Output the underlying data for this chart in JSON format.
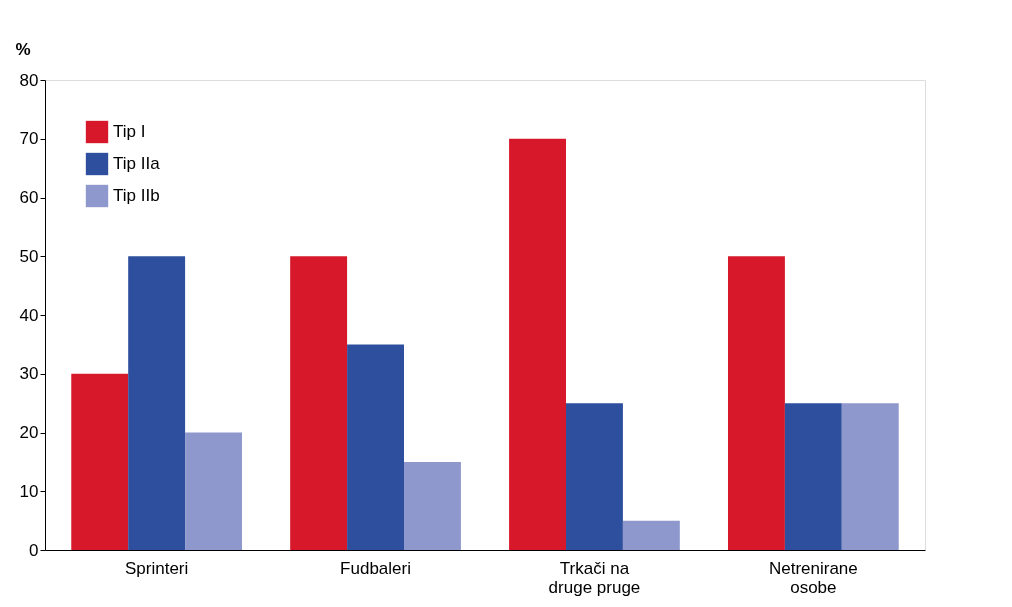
{
  "chart_data": {
    "type": "bar",
    "ylabel": "%",
    "categories": [
      "Sprinteri",
      "Fudbaleri",
      "Trkači na druge pruge",
      "Netrenirane osobe"
    ],
    "series": [
      {
        "name": "Tip I",
        "color": "#d7182a",
        "values": [
          30,
          50,
          70,
          50
        ]
      },
      {
        "name": "Tip IIa",
        "color": "#2e4f9e",
        "values": [
          50,
          35,
          25,
          25
        ]
      },
      {
        "name": "Tip IIb",
        "color": "#8e98cc",
        "values": [
          20,
          15,
          5,
          25
        ]
      }
    ],
    "ylim": [
      0,
      80
    ],
    "yticks": [
      0,
      10,
      20,
      30,
      40,
      50,
      60,
      70,
      80
    ],
    "grid": false,
    "legend": "top left"
  }
}
